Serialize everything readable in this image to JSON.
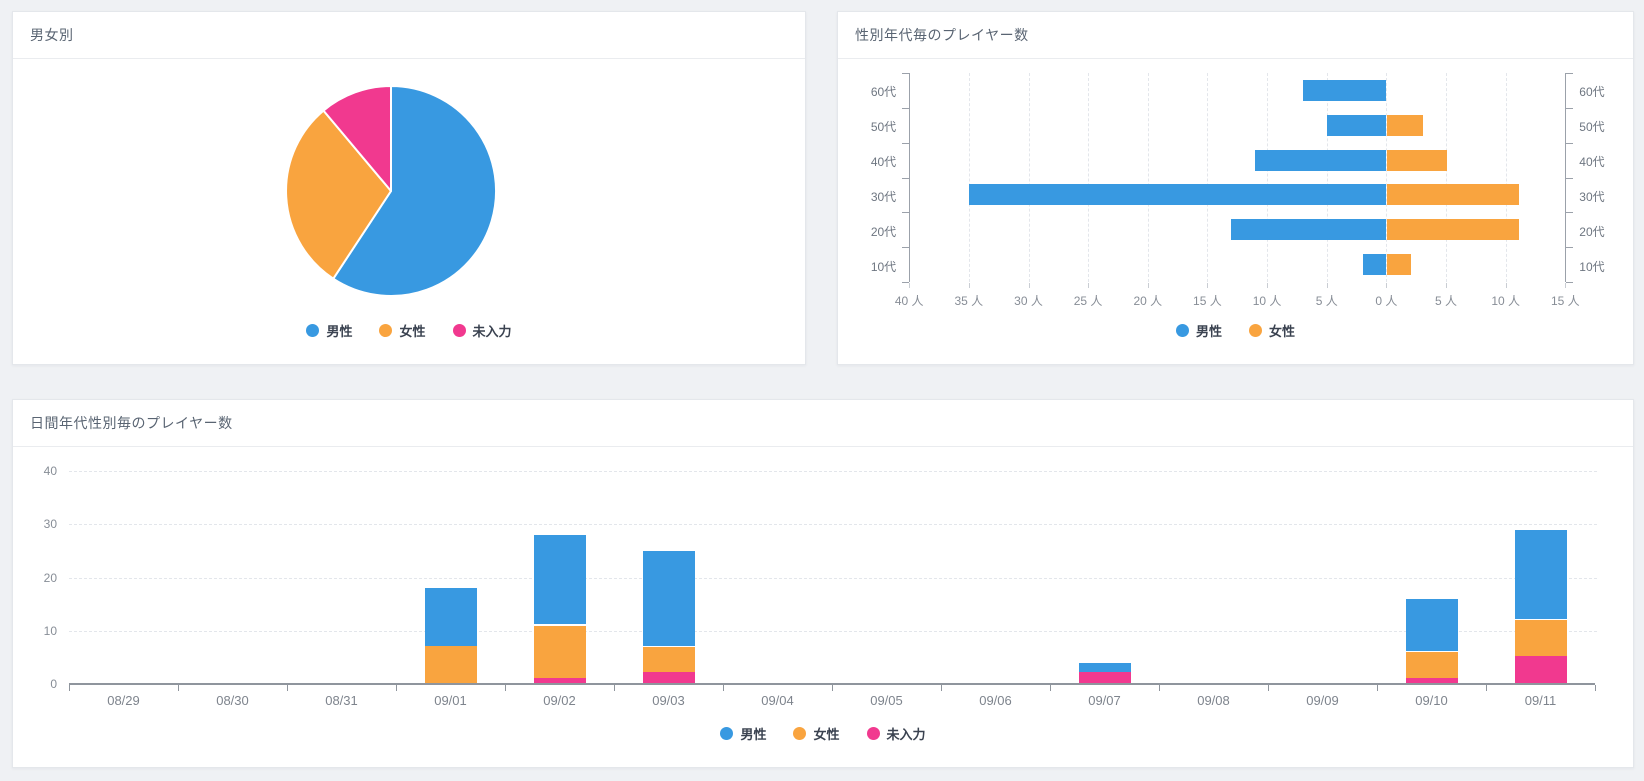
{
  "colors": {
    "男性": "#3899e1",
    "女性": "#f9a43f",
    "未入力": "#f1398f",
    "page_background": "#eff1f4",
    "card_background": "#ffffff",
    "axis_line": "#8f959d",
    "grid_dash": "#e3e6eb"
  },
  "chart_data": [
    {
      "id": "gender-pie",
      "type": "pie",
      "title": "男女別",
      "labels": [
        "男性",
        "女性",
        "未入力"
      ],
      "keys": [
        "male",
        "female",
        "unknown"
      ],
      "values": [
        16,
        8,
        3
      ],
      "percents": [
        59.3,
        29.6,
        11.1
      ],
      "colors": [
        "#3899e1",
        "#f9a43f",
        "#f1398f"
      ],
      "start_angle": "top",
      "direction": "clockwise",
      "legend": [
        "男性",
        "女性",
        "未入力"
      ],
      "legend_position": "bottom"
    },
    {
      "id": "age-gender-tornado",
      "type": "bar",
      "orientation": "horizontal-diverging",
      "title": "性別年代毎のプレイヤー数",
      "categories": [
        "60代",
        "50代",
        "40代",
        "30代",
        "20代",
        "10代"
      ],
      "series": [
        {
          "name": "男性",
          "key": "male",
          "side": "left",
          "color": "#3899e1",
          "values": [
            7,
            5,
            11,
            35,
            13,
            2
          ]
        },
        {
          "name": "女性",
          "key": "female",
          "side": "right",
          "color": "#f9a43f",
          "values": [
            0,
            3,
            5,
            11,
            11,
            2
          ]
        }
      ],
      "x_axis": {
        "unit": "人",
        "left_max": 40,
        "right_max": 15,
        "step": 5,
        "left_tick_labels": [
          "40 人",
          "35 人",
          "30 人",
          "25 人",
          "20 人",
          "15 人",
          "10 人",
          "5 人",
          "0 人"
        ],
        "right_tick_labels": [
          "5 人",
          "10 人",
          "15 人"
        ]
      },
      "grid": "dashed-vertical",
      "legend": [
        "男性",
        "女性"
      ],
      "legend_position": "bottom"
    },
    {
      "id": "daily-age-gender-stack",
      "type": "bar",
      "stacked": true,
      "title": "日間年代性別毎のプレイヤー数",
      "categories": [
        "08/29",
        "08/30",
        "08/31",
        "09/01",
        "09/02",
        "09/03",
        "09/04",
        "09/05",
        "09/06",
        "09/07",
        "09/08",
        "09/09",
        "09/10",
        "09/11"
      ],
      "series": [
        {
          "name": "未入力",
          "key": "unknown",
          "stack_level": 1,
          "color": "#f1398f",
          "values": [
            0,
            0,
            0,
            0,
            1,
            2,
            0,
            0,
            0,
            2,
            0,
            0,
            1,
            5
          ]
        },
        {
          "name": "女性",
          "key": "female",
          "stack_level": 2,
          "color": "#f9a43f",
          "values": [
            0,
            0,
            0,
            7,
            10,
            5,
            0,
            0,
            0,
            0,
            0,
            0,
            5,
            7
          ]
        },
        {
          "name": "男性",
          "key": "male",
          "stack_level": 3,
          "color": "#3899e1",
          "values": [
            0,
            0,
            0,
            11,
            17,
            18,
            0,
            0,
            0,
            2,
            0,
            0,
            10,
            17
          ]
        }
      ],
      "totals": [
        0,
        0,
        0,
        18,
        28,
        25,
        0,
        0,
        0,
        4,
        0,
        0,
        16,
        29
      ],
      "y_axis": {
        "min": 0,
        "max": 40,
        "tick_values": [
          0,
          10,
          20,
          30,
          40
        ],
        "tick_labels": [
          "0",
          "10",
          "20",
          "30",
          "40"
        ]
      },
      "grid": "dashed-horizontal",
      "legend": [
        "男性",
        "女性",
        "未入力"
      ],
      "legend_position": "bottom"
    }
  ]
}
